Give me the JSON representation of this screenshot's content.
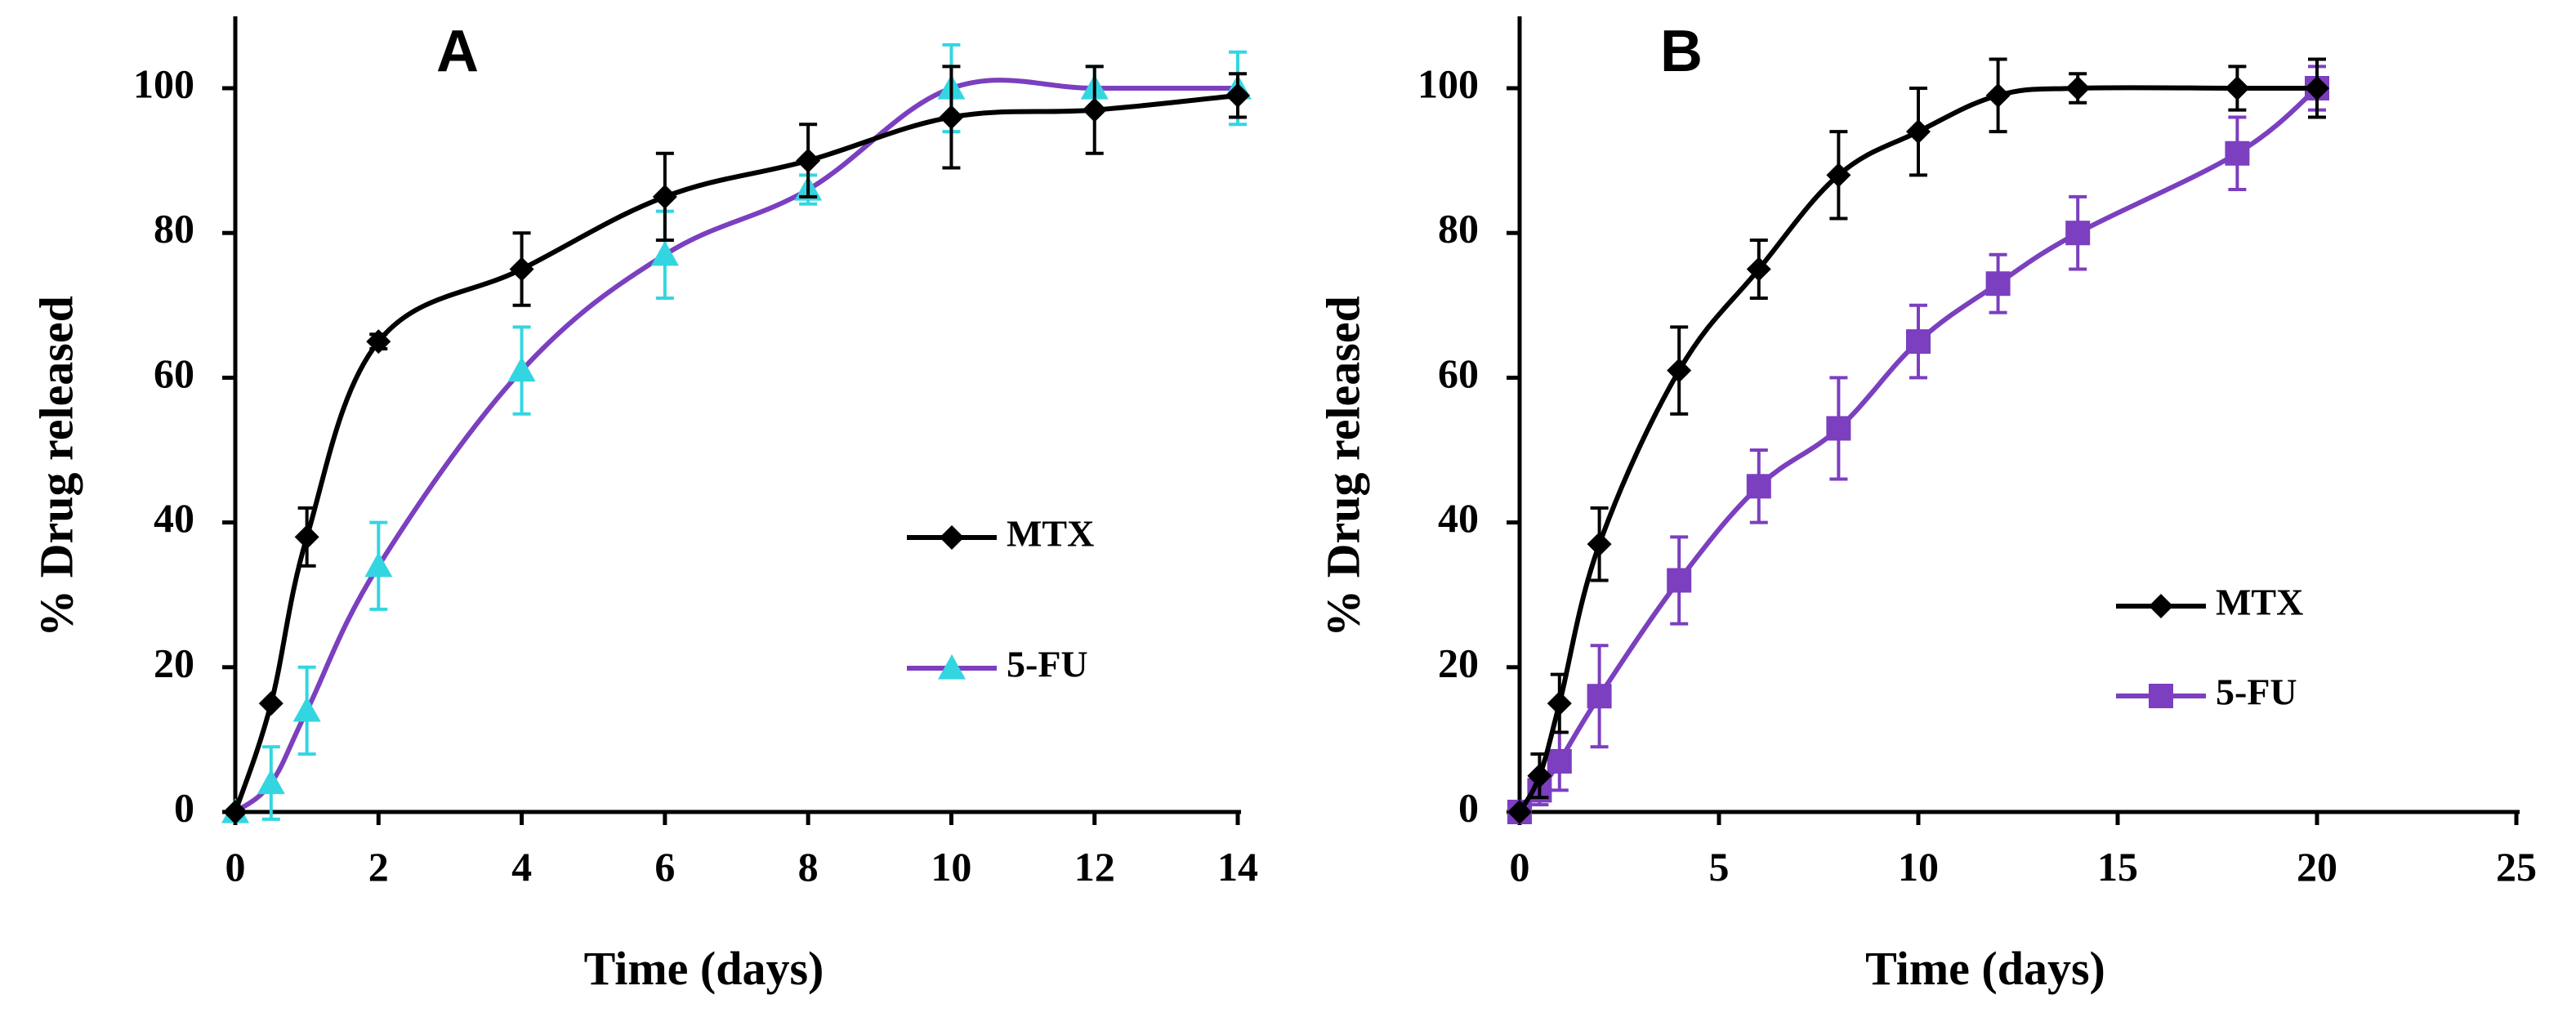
{
  "colors": {
    "mtx": "#000000",
    "fu_line": "#7B3FBF",
    "fu_marker_a": "#33D6E0",
    "fu_marker_b": "#7B3FBF",
    "axis": "#000000"
  },
  "chart_data": [
    {
      "type": "line",
      "panel_label": "A",
      "xlabel": "Time (days)",
      "ylabel": "% Drug released",
      "xlim": [
        0,
        14
      ],
      "ylim": [
        0,
        100
      ],
      "xticks": [
        0,
        2,
        4,
        6,
        8,
        10,
        12,
        14
      ],
      "yticks": [
        0,
        20,
        40,
        60,
        80,
        100
      ],
      "x_tick_labels": [
        "0",
        "2",
        "4",
        "6",
        "8",
        "10",
        "12",
        "14"
      ],
      "y_tick_labels": [
        "0",
        "20",
        "40",
        "60",
        "80",
        "100"
      ],
      "legend_position": "right",
      "grid": false,
      "smooth": true,
      "series": [
        {
          "name": "MTX",
          "marker": "diamond",
          "color": "#000000",
          "marker_color": "#000000",
          "x": [
            0,
            0.5,
            1,
            2,
            4,
            6,
            8,
            10,
            12,
            14
          ],
          "y": [
            0,
            15,
            38,
            65,
            75,
            85,
            90,
            96,
            97,
            99
          ],
          "err": [
            0,
            0,
            4,
            1,
            5,
            6,
            5,
            7,
            6,
            3
          ]
        },
        {
          "name": "5-FU",
          "marker": "triangle",
          "color": "#7B3FBF",
          "marker_color": "#33D6E0",
          "x": [
            0,
            0.5,
            1,
            2,
            4,
            6,
            8,
            10,
            12,
            14
          ],
          "y": [
            0,
            4,
            14,
            34,
            61,
            77,
            86,
            100,
            100,
            100
          ],
          "err": [
            0,
            5,
            6,
            6,
            6,
            6,
            2,
            6,
            3,
            5
          ]
        }
      ]
    },
    {
      "type": "line",
      "panel_label": "B",
      "xlabel": "Time (days)",
      "ylabel": "% Drug released",
      "xlim": [
        0,
        25
      ],
      "ylim": [
        0,
        100
      ],
      "xticks": [
        0,
        5,
        10,
        15,
        20,
        25
      ],
      "yticks": [
        0,
        20,
        40,
        60,
        80,
        100
      ],
      "x_tick_labels": [
        "0",
        "5",
        "10",
        "15",
        "20",
        "25"
      ],
      "y_tick_labels": [
        "0",
        "20",
        "40",
        "60",
        "80",
        "100"
      ],
      "legend_position": "right",
      "grid": false,
      "smooth": true,
      "series": [
        {
          "name": "MTX",
          "marker": "diamond",
          "color": "#000000",
          "marker_color": "#000000",
          "x": [
            0,
            0.5,
            1,
            2,
            4,
            6,
            8,
            10,
            12,
            14,
            18,
            20
          ],
          "y": [
            0,
            5,
            15,
            37,
            61,
            75,
            88,
            94,
            99,
            100,
            100,
            100
          ],
          "err": [
            0,
            3,
            4,
            5,
            6,
            4,
            6,
            6,
            5,
            2,
            3,
            4
          ]
        },
        {
          "name": "5-FU",
          "marker": "square",
          "color": "#7B3FBF",
          "marker_color": "#7B3FBF",
          "x": [
            0,
            0.5,
            1,
            2,
            4,
            6,
            8,
            10,
            12,
            14,
            18,
            20
          ],
          "y": [
            0,
            3,
            7,
            16,
            32,
            45,
            53,
            65,
            73,
            80,
            91,
            100
          ],
          "err": [
            0,
            2,
            4,
            7,
            6,
            5,
            7,
            5,
            4,
            5,
            5,
            3
          ]
        }
      ]
    }
  ]
}
